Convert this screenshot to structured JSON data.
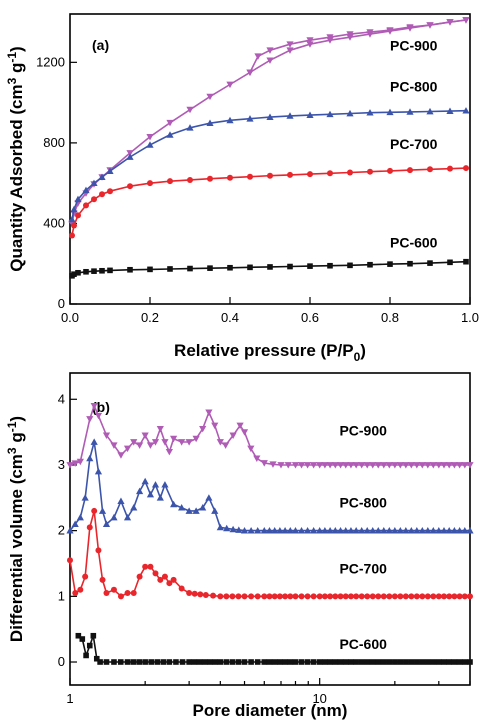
{
  "chart_data": [
    {
      "panel": "(a)",
      "type": "line",
      "xlabel": "Relative pressure (P/P",
      "xlabel_sub": "0",
      "xlabel_tail": ")",
      "ylabel": "Quantity Adsorbed (cm",
      "ylabel_sup1": "3",
      "ylabel_mid": " g",
      "ylabel_sup2": "-1",
      "ylabel_tail": ")",
      "xlim": [
        0.0,
        1.0
      ],
      "ylim": [
        0,
        1440
      ],
      "x_ticks": [
        "0.0",
        "0.2",
        "0.4",
        "0.6",
        "0.8",
        "1.0"
      ],
      "y_ticks": [
        "0",
        "400",
        "800",
        "1200"
      ],
      "grid": false,
      "series": [
        {
          "name": "PC-900",
          "color": "#b05bb5",
          "marker": "triangle-down",
          "label_pos": [
            0.8,
            1260
          ],
          "adsorption": {
            "x": [
              0.005,
              0.01,
              0.02,
              0.04,
              0.06,
              0.08,
              0.1,
              0.15,
              0.2,
              0.25,
              0.3,
              0.35,
              0.4,
              0.45,
              0.5,
              0.55,
              0.6,
              0.65,
              0.7,
              0.75,
              0.8,
              0.85,
              0.9,
              0.95,
              0.99
            ],
            "y": [
              400,
              450,
              500,
              550,
              595,
              630,
              665,
              750,
              830,
              900,
              965,
              1030,
              1090,
              1150,
              1210,
              1260,
              1290,
              1310,
              1325,
              1340,
              1355,
              1370,
              1385,
              1400,
              1410
            ]
          },
          "desorption": {
            "x": [
              0.99,
              0.95,
              0.9,
              0.85,
              0.8,
              0.75,
              0.7,
              0.65,
              0.6,
              0.55,
              0.5,
              0.47,
              0.45
            ],
            "y": [
              1410,
              1400,
              1385,
              1375,
              1360,
              1350,
              1340,
              1325,
              1310,
              1290,
              1260,
              1230,
              1150
            ]
          }
        },
        {
          "name": "PC-800",
          "color": "#3c55ab",
          "marker": "triangle-up",
          "label_pos": [
            0.8,
            1055
          ],
          "adsorption": {
            "x": [
              0.005,
              0.01,
              0.02,
              0.04,
              0.06,
              0.08,
              0.1,
              0.15,
              0.2,
              0.25,
              0.3,
              0.35,
              0.4,
              0.45,
              0.5,
              0.55,
              0.6,
              0.65,
              0.7,
              0.75,
              0.8,
              0.85,
              0.9,
              0.95,
              0.99
            ],
            "y": [
              420,
              470,
              520,
              565,
              600,
              630,
              660,
              730,
              790,
              840,
              875,
              898,
              912,
              920,
              928,
              934,
              938,
              942,
              946,
              950,
              952,
              954,
              956,
              958,
              960
            ]
          }
        },
        {
          "name": "PC-700",
          "color": "#e8262b",
          "marker": "circle",
          "label_pos": [
            0.8,
            770
          ],
          "adsorption": {
            "x": [
              0.005,
              0.01,
              0.02,
              0.04,
              0.06,
              0.08,
              0.1,
              0.15,
              0.2,
              0.25,
              0.3,
              0.35,
              0.4,
              0.45,
              0.5,
              0.55,
              0.6,
              0.65,
              0.7,
              0.75,
              0.8,
              0.85,
              0.9,
              0.95,
              0.99
            ],
            "y": [
              340,
              390,
              440,
              490,
              520,
              545,
              560,
              585,
              600,
              610,
              616,
              622,
              627,
              632,
              637,
              641,
              645,
              649,
              653,
              657,
              661,
              665,
              669,
              672,
              675
            ]
          }
        },
        {
          "name": "PC-600",
          "color": "#111111",
          "marker": "square",
          "label_pos": [
            0.8,
            280
          ],
          "adsorption": {
            "x": [
              0.005,
              0.01,
              0.02,
              0.04,
              0.06,
              0.08,
              0.1,
              0.15,
              0.2,
              0.25,
              0.3,
              0.35,
              0.4,
              0.45,
              0.5,
              0.55,
              0.6,
              0.65,
              0.7,
              0.75,
              0.8,
              0.85,
              0.9,
              0.95,
              0.99
            ],
            "y": [
              140,
              148,
              155,
              160,
              163,
              165,
              167,
              170,
              172,
              174,
              176,
              178,
              180,
              182,
              184,
              186,
              188,
              190,
              192,
              195,
              198,
              200,
              203,
              207,
              210
            ]
          }
        }
      ]
    },
    {
      "panel": "(b)",
      "type": "line",
      "xlabel": "Pore diameter (nm)",
      "ylabel": "Differential volume (cm",
      "ylabel_sup1": "3",
      "ylabel_mid": " g",
      "ylabel_sup2": "-1",
      "ylabel_tail": ")",
      "xscale": "log",
      "xlim": [
        1,
        40
      ],
      "ylim": [
        -0.35,
        4.4
      ],
      "x_ticks": [
        {
          "value": 1,
          "label": "1"
        },
        {
          "value": 10,
          "label": "10"
        }
      ],
      "y_ticks": [
        "0",
        "1",
        "2",
        "3",
        "4"
      ],
      "grid": false,
      "series": [
        {
          "name": "PC-900",
          "color": "#b05bb5",
          "marker": "triangle-down",
          "label_pos": [
            12,
            3.45
          ],
          "x": [
            1.0,
            1.1,
            1.2,
            1.25,
            1.3,
            1.4,
            1.5,
            1.6,
            1.7,
            1.8,
            1.9,
            2.0,
            2.1,
            2.2,
            2.3,
            2.4,
            2.5,
            2.6,
            2.8,
            3.0,
            3.2,
            3.4,
            3.6,
            3.8,
            4.0,
            4.2,
            4.5,
            4.8,
            5.0,
            5.3,
            5.6,
            6.0,
            6.5,
            7.0,
            8.0,
            10.0,
            14.0,
            20.0,
            30.0,
            40.0
          ],
          "y": [
            3.0,
            3.05,
            3.7,
            3.9,
            3.75,
            3.45,
            3.3,
            3.15,
            3.25,
            3.35,
            3.3,
            3.45,
            3.3,
            3.35,
            3.55,
            3.35,
            3.2,
            3.4,
            3.35,
            3.35,
            3.4,
            3.55,
            3.8,
            3.6,
            3.35,
            3.3,
            3.45,
            3.6,
            3.5,
            3.25,
            3.1,
            3.03,
            3.01,
            3.0,
            3.0,
            3.0,
            3.0,
            3.0,
            3.0,
            3.0
          ]
        },
        {
          "name": "PC-800",
          "color": "#3c55ab",
          "marker": "triangle-up",
          "label_pos": [
            12,
            2.35
          ],
          "x": [
            1.0,
            1.1,
            1.15,
            1.2,
            1.25,
            1.3,
            1.35,
            1.4,
            1.5,
            1.6,
            1.7,
            1.8,
            1.9,
            2.0,
            2.1,
            2.2,
            2.3,
            2.4,
            2.6,
            2.8,
            3.0,
            3.2,
            3.4,
            3.6,
            3.8,
            4.0,
            4.5,
            5.0,
            6.0,
            8.0,
            10.0,
            14.0,
            20.0,
            30.0,
            40.0
          ],
          "y": [
            2.0,
            2.2,
            2.5,
            3.1,
            3.35,
            2.9,
            2.3,
            2.1,
            2.2,
            2.45,
            2.2,
            2.35,
            2.6,
            2.75,
            2.55,
            2.7,
            2.5,
            2.7,
            2.4,
            2.35,
            2.3,
            2.3,
            2.35,
            2.5,
            2.3,
            2.05,
            2.02,
            2.0,
            2.0,
            2.0,
            2.0,
            2.0,
            2.0,
            2.0,
            2.0
          ]
        },
        {
          "name": "PC-700",
          "color": "#e8262b",
          "marker": "circle",
          "label_pos": [
            12,
            1.35
          ],
          "x": [
            1.0,
            1.05,
            1.1,
            1.15,
            1.2,
            1.25,
            1.3,
            1.35,
            1.4,
            1.5,
            1.6,
            1.7,
            1.8,
            1.9,
            2.0,
            2.1,
            2.2,
            2.3,
            2.4,
            2.5,
            2.6,
            2.8,
            3.0,
            3.5,
            4.0,
            5.0,
            6.0,
            8.0,
            10.0,
            14.0,
            20.0,
            30.0,
            40.0
          ],
          "y": [
            1.55,
            1.05,
            1.1,
            1.3,
            2.05,
            2.3,
            1.7,
            1.25,
            1.05,
            1.1,
            1.0,
            1.05,
            1.05,
            1.3,
            1.45,
            1.45,
            1.35,
            1.25,
            1.3,
            1.2,
            1.25,
            1.12,
            1.05,
            1.02,
            1.0,
            1.0,
            1.0,
            1.0,
            1.0,
            1.0,
            1.0,
            1.0,
            1.0
          ]
        },
        {
          "name": "PC-600",
          "color": "#111111",
          "marker": "square",
          "label_pos": [
            12,
            0.2
          ],
          "x": [
            1.08,
            1.12,
            1.16,
            1.2,
            1.24,
            1.28,
            1.32,
            1.4,
            1.5,
            1.7,
            2.0,
            2.5,
            3.0,
            4.0,
            5.0,
            6.0,
            8.0,
            10.0,
            14.0,
            20.0,
            30.0,
            40.0
          ],
          "y": [
            0.4,
            0.35,
            0.1,
            0.25,
            0.4,
            0.05,
            0.0,
            0.0,
            0.0,
            0.0,
            0.0,
            0.0,
            0.0,
            0.0,
            0.0,
            0.0,
            0.0,
            0.0,
            0.0,
            0.0,
            0.0,
            0.0
          ]
        }
      ]
    }
  ]
}
